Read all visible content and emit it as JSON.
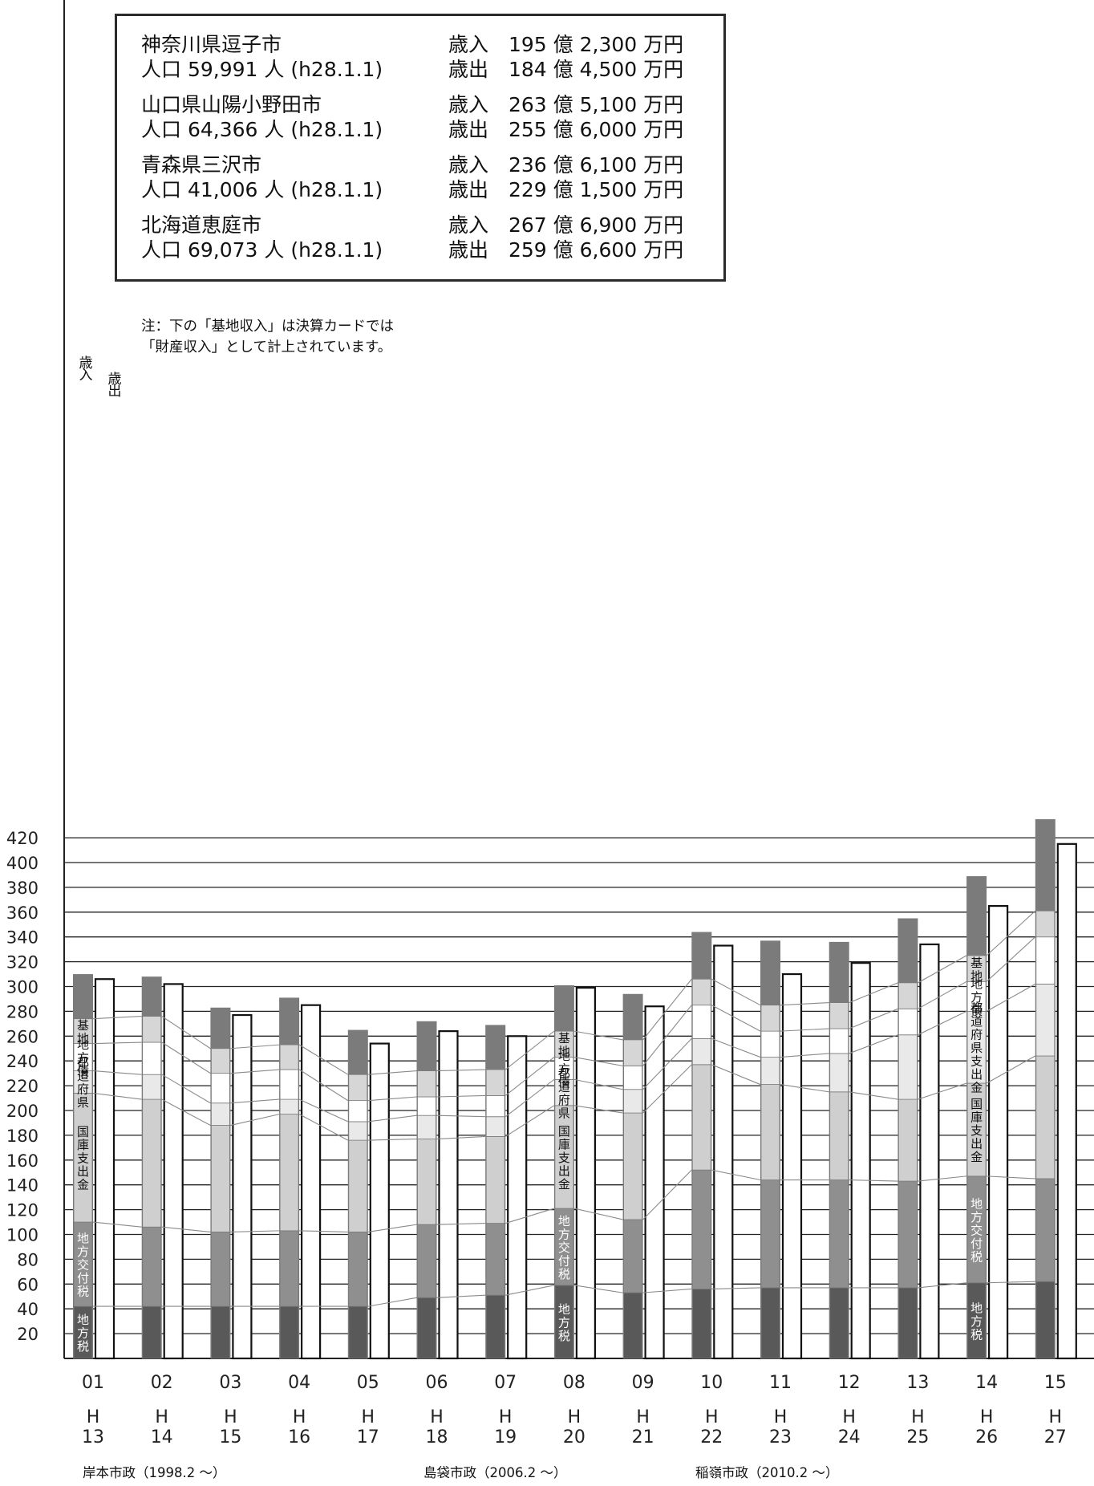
{
  "legend": {
    "cities": [
      {
        "line1": "神奈川県逗子市",
        "line2": "人口 59,991 人 (h28.1.1)",
        "rev": "歳入　195 億 2,300 万円",
        "exp": "歳出　184 億 4,500 万円"
      },
      {
        "line1": "山口県山陽小野田市",
        "line2": "人口 64,366 人 (h28.1.1)",
        "rev": "歳入　263 億 5,100 万円",
        "exp": "歳出　255 億 6,000 万円"
      },
      {
        "line1": "青森県三沢市",
        "line2": "人口 41,006 人 (h28.1.1)",
        "rev": "歳入　236 億 6,100 万円",
        "exp": "歳出　229 億 1,500 万円"
      },
      {
        "line1": "北海道恵庭市",
        "line2": "人口 69,073 人 (h28.1.1)",
        "rev": "歳入　267 億 6,900 万円",
        "exp": "歳出　259 億 6,600 万円"
      }
    ]
  },
  "note": {
    "line1": "注：下の「基地収入」は決算カードでは",
    "line2": "「財産収入」として計上されています。"
  },
  "column_labels": {
    "revenue": "歳入",
    "expenditure": "歳出"
  },
  "eras": [
    {
      "label": "岸本市政（1998.2 ～）"
    },
    {
      "label": "島袋市政（2006.2 ～）"
    },
    {
      "label": "稲嶺市政（2010.2 ～）"
    }
  ],
  "colors": {
    "revenue_bar": "#7b7b7b",
    "expenditure_bar": "#ffffff",
    "local_tax": "#595959",
    "local_allocation_tax": "#8f8f8f",
    "national_treasury": "#cfcfcf",
    "prefectural": "#e9e9e9",
    "local_bonds": "#ffffff",
    "base_income": "#d6d6d6",
    "grid": "#222222",
    "connector": "#8a8a8a"
  },
  "chart_data": {
    "type": "bar",
    "categories": [
      "01",
      "02",
      "03",
      "04",
      "05",
      "06",
      "07",
      "08",
      "09",
      "10",
      "11",
      "12",
      "13",
      "14",
      "15"
    ],
    "fiscal_years": [
      [
        "H",
        "13"
      ],
      [
        "H",
        "14"
      ],
      [
        "H",
        "15"
      ],
      [
        "H",
        "16"
      ],
      [
        "H",
        "17"
      ],
      [
        "H",
        "18"
      ],
      [
        "H",
        "19"
      ],
      [
        "H",
        "20"
      ],
      [
        "H",
        "21"
      ],
      [
        "H",
        "22"
      ],
      [
        "H",
        "23"
      ],
      [
        "H",
        "24"
      ],
      [
        "H",
        "25"
      ],
      [
        "H",
        "26"
      ],
      [
        "H",
        "27"
      ]
    ],
    "ylim": [
      0,
      440
    ],
    "yticks": [
      20,
      40,
      60,
      80,
      100,
      120,
      140,
      160,
      180,
      200,
      220,
      240,
      260,
      280,
      300,
      320,
      340,
      360,
      380,
      400,
      420
    ],
    "grid": true,
    "series": [
      {
        "name": "歳入",
        "values": [
          310,
          308,
          283,
          291,
          265,
          272,
          269,
          301,
          294,
          344,
          337,
          336,
          355,
          389,
          435
        ]
      },
      {
        "name": "歳出",
        "values": [
          306,
          302,
          277,
          285,
          254,
          264,
          260,
          299,
          284,
          333,
          310,
          319,
          334,
          365,
          415
        ]
      }
    ],
    "breakdown": [
      {
        "key": "local_tax",
        "name": "地方税",
        "cumulative": [
          42,
          42,
          42,
          42,
          42,
          49,
          51,
          59,
          53,
          56,
          57,
          57,
          57,
          61,
          62
        ]
      },
      {
        "key": "local_allocation_tax",
        "name": "地方交付税",
        "cumulative": [
          110,
          106,
          102,
          103,
          102,
          108,
          109,
          121,
          112,
          152,
          144,
          144,
          143,
          147,
          145
        ]
      },
      {
        "key": "national_treasury",
        "name": "国庫支出金",
        "cumulative": [
          214,
          209,
          188,
          197,
          176,
          177,
          179,
          204,
          198,
          237,
          221,
          215,
          209,
          222,
          244
        ]
      },
      {
        "key": "prefectural",
        "name": "都道府県",
        "cumulative": [
          232,
          229,
          206,
          209,
          191,
          196,
          195,
          225,
          217,
          258,
          243,
          246,
          261,
          280,
          302
        ]
      },
      {
        "key": "local_bonds",
        "name": "地方債",
        "cumulative": [
          254,
          255,
          230,
          233,
          208,
          211,
          212,
          243,
          236,
          285,
          264,
          266,
          282,
          304,
          340
        ]
      },
      {
        "key": "base_income",
        "name": "基地",
        "cumulative": [
          274,
          276,
          250,
          253,
          229,
          232,
          233,
          264,
          257,
          306,
          285,
          287,
          303,
          325,
          361
        ]
      }
    ],
    "vertical_labels": [
      {
        "bar": 0,
        "key": "base_income",
        "text": "基地"
      },
      {
        "bar": 0,
        "key": "local_bonds",
        "text": "地方債"
      },
      {
        "bar": 0,
        "key": "prefectural",
        "text": "都道府県"
      },
      {
        "bar": 0,
        "key": "national_treasury",
        "text": "国庫支出金"
      },
      {
        "bar": 0,
        "key": "local_allocation_tax",
        "text": "地方交付税"
      },
      {
        "bar": 0,
        "key": "local_tax",
        "text": "地方税"
      },
      {
        "bar": 7,
        "key": "base_income",
        "text": "基地"
      },
      {
        "bar": 7,
        "key": "local_bonds",
        "text": "地方債"
      },
      {
        "bar": 7,
        "key": "prefectural",
        "text": "都道府県"
      },
      {
        "bar": 7,
        "key": "national_treasury",
        "text": "国庫支出金"
      },
      {
        "bar": 7,
        "key": "local_allocation_tax",
        "text": "地方交付税"
      },
      {
        "bar": 7,
        "key": "local_tax",
        "text": "地方税"
      },
      {
        "bar": 13,
        "key": "base_income",
        "text": "基地"
      },
      {
        "bar": 13,
        "key": "local_bonds",
        "text": "地方債"
      },
      {
        "bar": 13,
        "key": "prefectural",
        "text": "都道府県支出金"
      },
      {
        "bar": 13,
        "key": "national_treasury",
        "text": "国庫支出金"
      },
      {
        "bar": 13,
        "key": "local_allocation_tax",
        "text": "地方交付税"
      },
      {
        "bar": 13,
        "key": "local_tax",
        "text": "地方税"
      }
    ]
  }
}
